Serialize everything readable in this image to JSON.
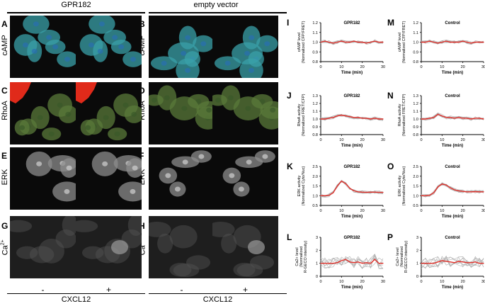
{
  "headers": {
    "left": "GPR182",
    "right": "empty vector"
  },
  "footers": {
    "left": "CXCL12",
    "right": "CXCL12"
  },
  "signs": {
    "minus": "-",
    "plus": "+"
  },
  "rows": [
    {
      "label": "cAMP",
      "left_letter": "A",
      "right_letter": "B"
    },
    {
      "label": "RhoA",
      "left_letter": "C",
      "right_letter": "D"
    },
    {
      "label": "ERK",
      "left_letter": "E",
      "right_letter": "F"
    },
    {
      "label": "Ca",
      "sup": "2+",
      "left_letter": "G",
      "right_letter": "H"
    }
  ],
  "colors": {
    "mean_trace": "#e0302a",
    "cell_trace": "#b0b0b0"
  },
  "chart_data": [
    {
      "id": "I",
      "type": "line",
      "title": "GPR182",
      "ylabel": "cAMP level",
      "ylabel2": "(Normalized CFP/FRET)",
      "xlabel": "Time (min)",
      "ylim": [
        0.8,
        1.2
      ],
      "yticks": [
        "0.8",
        "0.9",
        "1.0",
        "1.1",
        "1.2"
      ],
      "xlim": [
        0,
        30
      ],
      "xticks": [
        "0",
        "10",
        "20",
        "30"
      ],
      "x": [
        0,
        2,
        4,
        6,
        8,
        10,
        12,
        14,
        16,
        18,
        20,
        22,
        24,
        26,
        28,
        30
      ],
      "values": [
        1.0,
        1.01,
        1.0,
        0.99,
        1.0,
        1.01,
        1.0,
        1.0,
        1.01,
        1.0,
        1.0,
        0.99,
        1.0,
        1.01,
        1.0,
        1.0
      ]
    },
    {
      "id": "M",
      "type": "line",
      "title": "Control",
      "ylabel": "cAMP level",
      "ylabel2": "(Normalized CFP/FRET)",
      "xlabel": "Time (min)",
      "ylim": [
        0.8,
        1.2
      ],
      "yticks": [
        "0.8",
        "0.9",
        "1.0",
        "1.1",
        "1.2"
      ],
      "xlim": [
        0,
        30
      ],
      "xticks": [
        "0",
        "10",
        "20",
        "30"
      ],
      "x": [
        0,
        2,
        4,
        6,
        8,
        10,
        12,
        14,
        16,
        18,
        20,
        22,
        24,
        26,
        28,
        30
      ],
      "values": [
        1.0,
        1.0,
        1.01,
        1.0,
        0.99,
        1.0,
        1.01,
        1.0,
        1.0,
        1.0,
        1.01,
        1.0,
        0.99,
        1.0,
        1.0,
        1.0
      ]
    },
    {
      "id": "J",
      "type": "line",
      "title": "GPR182",
      "ylabel": "RhoA activity",
      "ylabel2": "(Normalized FRET/CFP)",
      "xlabel": "Time (min)",
      "ylim": [
        0.8,
        1.3
      ],
      "yticks": [
        "0.8",
        "0.9",
        "1.0",
        "1.1",
        "1.2",
        "1.3"
      ],
      "xlim": [
        0,
        30
      ],
      "xticks": [
        "0",
        "10",
        "20",
        "30"
      ],
      "x": [
        0,
        2,
        4,
        6,
        8,
        10,
        12,
        14,
        16,
        18,
        20,
        22,
        24,
        26,
        28,
        30
      ],
      "values": [
        1.0,
        1.0,
        1.01,
        1.02,
        1.04,
        1.05,
        1.04,
        1.03,
        1.02,
        1.02,
        1.01,
        1.01,
        1.0,
        1.01,
        1.0,
        1.0
      ]
    },
    {
      "id": "N",
      "type": "line",
      "title": "Control",
      "ylabel": "RhoA activity",
      "ylabel2": "(Normalized FRET/CFP)",
      "xlabel": "Time (min)",
      "ylim": [
        0.8,
        1.3
      ],
      "yticks": [
        "0.8",
        "0.9",
        "1.0",
        "1.1",
        "1.2",
        "1.3"
      ],
      "xlim": [
        0,
        30
      ],
      "xticks": [
        "0",
        "10",
        "20",
        "30"
      ],
      "x": [
        0,
        2,
        4,
        6,
        8,
        10,
        12,
        14,
        16,
        18,
        20,
        22,
        24,
        26,
        28,
        30
      ],
      "values": [
        1.0,
        1.0,
        1.01,
        1.02,
        1.06,
        1.04,
        1.02,
        1.02,
        1.01,
        1.02,
        1.01,
        1.01,
        1.0,
        1.01,
        1.01,
        1.0
      ]
    },
    {
      "id": "K",
      "type": "line",
      "title": "GPR182",
      "ylabel": "ERK activity",
      "ylabel2": "(Normalized Cyto/Nuc)",
      "xlabel": "Time (min)",
      "ylim": [
        0.5,
        2.5
      ],
      "yticks": [
        "0.5",
        "1.0",
        "1.5",
        "2.0",
        "2.5"
      ],
      "xlim": [
        0,
        30
      ],
      "xticks": [
        "0",
        "10",
        "20",
        "30"
      ],
      "x": [
        0,
        2,
        4,
        6,
        8,
        10,
        12,
        14,
        16,
        18,
        20,
        22,
        24,
        26,
        28,
        30
      ],
      "values": [
        1.0,
        1.0,
        1.02,
        1.15,
        1.5,
        1.75,
        1.62,
        1.38,
        1.25,
        1.2,
        1.18,
        1.17,
        1.18,
        1.18,
        1.17,
        1.17
      ]
    },
    {
      "id": "O",
      "type": "line",
      "title": "Control",
      "ylabel": "ERK activity",
      "ylabel2": "(Normalized Cyto/Nuc)",
      "xlabel": "Time (min)",
      "ylim": [
        0.5,
        2.5
      ],
      "yticks": [
        "0.5",
        "1.0",
        "1.5",
        "2.0",
        "2.5"
      ],
      "xlim": [
        0,
        30
      ],
      "xticks": [
        "0",
        "10",
        "20",
        "30"
      ],
      "x": [
        0,
        2,
        4,
        6,
        8,
        10,
        12,
        14,
        16,
        18,
        20,
        22,
        24,
        26,
        28,
        30
      ],
      "values": [
        1.0,
        1.0,
        1.02,
        1.15,
        1.45,
        1.6,
        1.55,
        1.4,
        1.3,
        1.25,
        1.22,
        1.2,
        1.2,
        1.21,
        1.2,
        1.2
      ]
    },
    {
      "id": "L",
      "type": "line",
      "title": "GPR182",
      "ylabel": "Ca2+ level",
      "ylabel2": "(Normalized",
      "ylabel3": "R-GECO intensity)",
      "xlabel": "Time (min)",
      "ylim": [
        0,
        3
      ],
      "yticks": [
        "0",
        "1",
        "2",
        "3"
      ],
      "xlim": [
        0,
        30
      ],
      "xticks": [
        "0",
        "10",
        "20",
        "30"
      ],
      "x": [
        0,
        2,
        4,
        6,
        8,
        10,
        12,
        14,
        16,
        18,
        20,
        22,
        24,
        26,
        28,
        30
      ],
      "values": [
        1.0,
        1.0,
        1.0,
        1.0,
        1.05,
        1.2,
        1.3,
        1.1,
        1.05,
        1.1,
        1.0,
        1.05,
        1.0,
        1.3,
        1.0,
        1.0
      ]
    },
    {
      "id": "P",
      "type": "line",
      "title": "Control",
      "ylabel": "Ca2+ level",
      "ylabel2": "(Normalized",
      "ylabel3": "R-GECO intensity)",
      "xlabel": "Time (min)",
      "ylim": [
        0,
        3
      ],
      "yticks": [
        "0",
        "1",
        "2",
        "3"
      ],
      "xlim": [
        0,
        30
      ],
      "xticks": [
        "0",
        "10",
        "20",
        "30"
      ],
      "x": [
        0,
        2,
        4,
        6,
        8,
        10,
        12,
        14,
        16,
        18,
        20,
        22,
        24,
        26,
        28,
        30
      ],
      "values": [
        1.0,
        1.0,
        1.0,
        1.0,
        1.1,
        1.2,
        1.15,
        1.1,
        1.05,
        1.15,
        1.1,
        1.05,
        1.05,
        1.1,
        1.0,
        1.0
      ]
    }
  ]
}
